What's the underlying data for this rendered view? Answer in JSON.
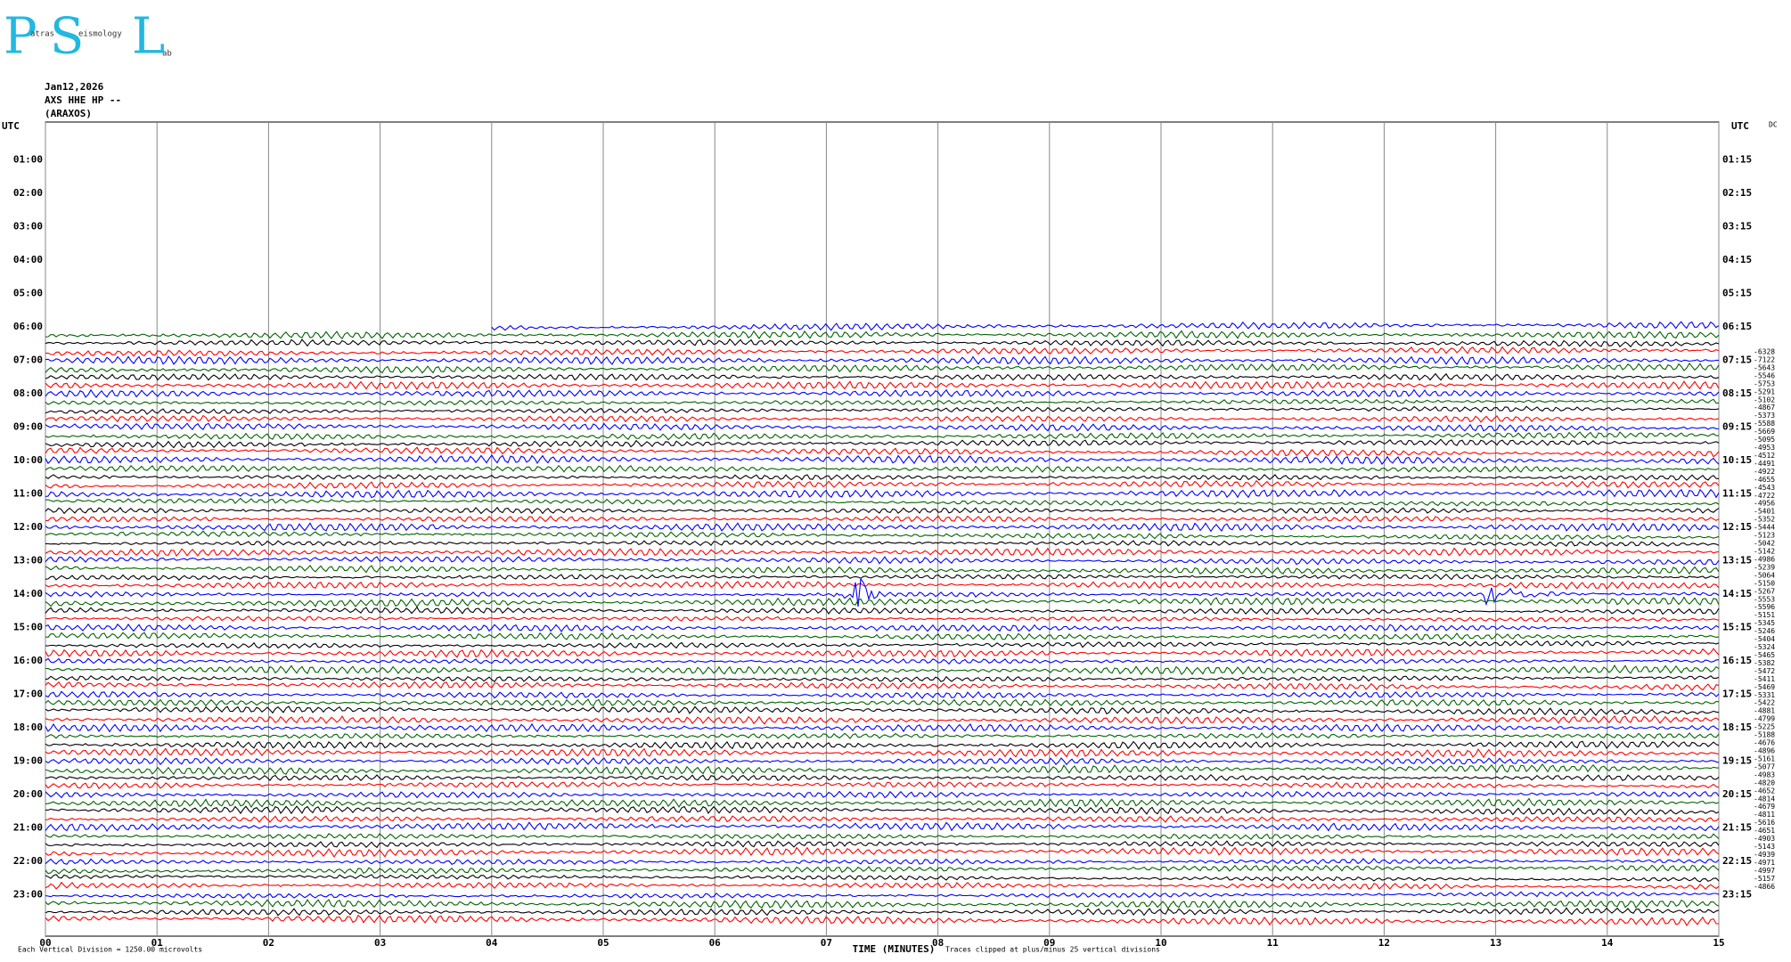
{
  "chart_data": {
    "type": "helicorder",
    "logo": [
      "P",
      "atras",
      "S",
      "eismology",
      "L",
      "ab"
    ],
    "date": "Jan12,2026",
    "station": "AXS HHE HP --",
    "location": "(ARAXOS)",
    "left_axis_title": "UTC",
    "right_axis_title": "UTC",
    "dc_title": "DC",
    "x_label": "TIME (MINUTES)",
    "clip_note": "Traces clipped at plus/minus 25 vertical divisions",
    "scale_note": "Each Vertical Division = 1250.00 microvolts",
    "xlim": [
      0,
      15
    ],
    "xticks": [
      {
        "value": 0,
        "label": "00"
      },
      {
        "value": 1,
        "label": "01"
      },
      {
        "value": 2,
        "label": "02"
      },
      {
        "value": 3,
        "label": "03"
      },
      {
        "value": 4,
        "label": "04"
      },
      {
        "value": 5,
        "label": "05"
      },
      {
        "value": 6,
        "label": "06"
      },
      {
        "value": 7,
        "label": "07"
      },
      {
        "value": 8,
        "label": "08"
      },
      {
        "value": 9,
        "label": "09"
      },
      {
        "value": 10,
        "label": "10"
      },
      {
        "value": 11,
        "label": "11"
      },
      {
        "value": 12,
        "label": "12"
      },
      {
        "value": 13,
        "label": "13"
      },
      {
        "value": 14,
        "label": "14"
      },
      {
        "value": 15,
        "label": "15"
      }
    ],
    "y_labels_left": [
      "01:00",
      "02:00",
      "03:00",
      "04:00",
      "05:00",
      "06:00",
      "07:00",
      "08:00",
      "09:00",
      "10:00",
      "11:00",
      "12:00",
      "13:00",
      "14:00",
      "15:00",
      "16:00",
      "17:00",
      "18:00",
      "19:00",
      "20:00",
      "21:00",
      "22:00",
      "23:00"
    ],
    "y_labels_right": [
      "01:15",
      "02:15",
      "03:15",
      "04:15",
      "05:15",
      "06:15",
      "07:15",
      "08:15",
      "09:15",
      "10:15",
      "11:15",
      "12:15",
      "13:15",
      "14:15",
      "15:15",
      "16:15",
      "17:15",
      "18:15",
      "19:15",
      "20:15",
      "21:15",
      "22:15",
      "23:15"
    ],
    "trace_colors": [
      "#0000ff",
      "#006400",
      "#000000",
      "#ff0000"
    ],
    "dc_offsets": [
      -6328,
      -7122,
      -5643,
      -5546,
      -5753,
      -5291,
      -5102,
      -4867,
      -5373,
      -5588,
      -5669,
      -5095,
      -4953,
      -4512,
      -4491,
      -4922,
      -4655,
      -4543,
      -4722,
      -4956,
      -5401,
      -5352,
      -5444,
      -5123,
      -5042,
      -5142,
      -4986,
      -5239,
      -5064,
      -5150,
      -5267,
      -5553,
      -5596,
      -5151,
      -5345,
      -5246,
      -5404,
      -5324,
      -5465,
      -5382,
      -5472,
      -5411,
      -5469,
      -5331,
      -5422,
      -4881,
      -4799,
      -5225,
      -5188,
      -4676,
      -4896,
      -5161,
      -5077,
      -4983,
      -4820,
      -4652,
      -4814,
      -4679,
      -4811,
      -5616,
      -4651,
      -4903,
      -5143,
      -4939,
      -4971,
      -4997,
      -5157,
      -4866
    ]
  }
}
